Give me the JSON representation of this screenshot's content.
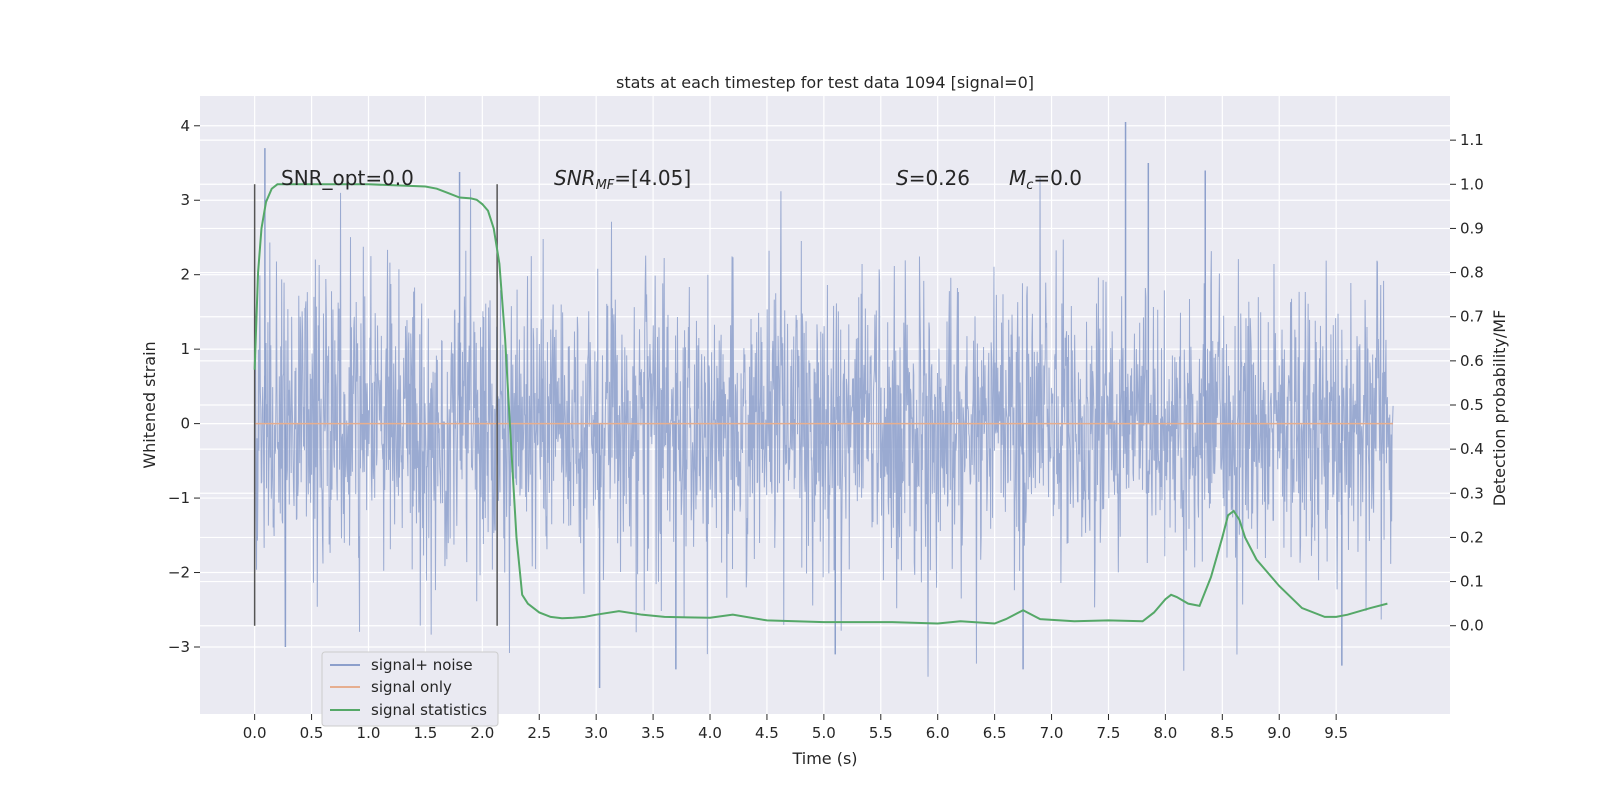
{
  "chart_data": {
    "type": "line",
    "title": "stats at each timestep for test data 1094 [signal=0]",
    "xlabel": "Time (s)",
    "ylabel_left": "Whitened strain",
    "ylabel_right": "Detection probability/MF",
    "xlim": [
      -0.48,
      10.5
    ],
    "ylim_left": [
      -3.9,
      4.4
    ],
    "ylim_right": [
      -0.2,
      1.2
    ],
    "x_ticks": [
      "0.0",
      "0.5",
      "1.0",
      "1.5",
      "2.0",
      "2.5",
      "3.0",
      "3.5",
      "4.0",
      "4.5",
      "5.0",
      "5.5",
      "6.0",
      "6.5",
      "7.0",
      "7.5",
      "8.0",
      "8.5",
      "9.0",
      "9.5"
    ],
    "y_ticks_left": [
      "−3",
      "−2",
      "−1",
      "0",
      "1",
      "2",
      "3",
      "4"
    ],
    "y_ticks_right": [
      "0.0",
      "0.1",
      "0.2",
      "0.3",
      "0.4",
      "0.5",
      "0.6",
      "0.7",
      "0.8",
      "0.9",
      "1.0",
      "1.1"
    ],
    "grid": true,
    "legend_position": "lower-left",
    "annotations": {
      "snr_opt": "SNR_opt=0.0",
      "snr_mf_main": "SNR",
      "snr_mf_sub": "MF",
      "snr_mf_value": "=[4.05]",
      "s_main": "S",
      "s_value": "=0.26",
      "mc_main": "M",
      "mc_sub": "c",
      "mc_value": "=0.0"
    },
    "vertical_markers_x": [
      0.0,
      2.13
    ],
    "series": [
      {
        "name": "signal+ noise",
        "axis": "left",
        "color": "#8c9fcb",
        "description_range": "noise envelope about ±1.4, peaks to about ±3.5",
        "x_range": [
          0.0,
          10.0
        ],
        "peaks": [
          {
            "x": 0.09,
            "y": 3.7
          },
          {
            "x": 1.8,
            "y": 3.38
          },
          {
            "x": 7.65,
            "y": 4.05
          },
          {
            "x": 7.85,
            "y": 3.5
          },
          {
            "x": 8.35,
            "y": 3.4
          },
          {
            "x": 3.03,
            "y": -3.55
          },
          {
            "x": 3.7,
            "y": -3.3
          },
          {
            "x": 9.55,
            "y": -3.25
          },
          {
            "x": 6.75,
            "y": -3.3
          },
          {
            "x": 0.27,
            "y": -3.0
          },
          {
            "x": 5.1,
            "y": -3.1
          }
        ]
      },
      {
        "name": "signal only",
        "axis": "left",
        "color": "#dd8452",
        "x": [
          0.0,
          10.0
        ],
        "y": [
          0.0,
          0.0
        ]
      },
      {
        "name": "signal statistics",
        "axis": "right",
        "color": "#55a868",
        "x": [
          0.0,
          0.03,
          0.06,
          0.1,
          0.15,
          0.2,
          0.3,
          0.5,
          1.0,
          1.5,
          1.6,
          1.7,
          1.8,
          1.9,
          1.95,
          2.0,
          2.05,
          2.1,
          2.15,
          2.2,
          2.25,
          2.3,
          2.35,
          2.4,
          2.45,
          2.5,
          2.55,
          2.6,
          2.7,
          2.8,
          2.9,
          3.0,
          3.2,
          3.4,
          3.6,
          3.8,
          4.0,
          4.2,
          4.5,
          5.0,
          5.3,
          5.6,
          6.0,
          6.2,
          6.5,
          6.6,
          6.75,
          6.9,
          7.2,
          7.5,
          7.8,
          7.9,
          8.0,
          8.05,
          8.1,
          8.2,
          8.3,
          8.4,
          8.5,
          8.55,
          8.6,
          8.65,
          8.7,
          8.8,
          8.9,
          9.0,
          9.2,
          9.4,
          9.5,
          9.6,
          9.8,
          9.95
        ],
        "y": [
          0.58,
          0.8,
          0.9,
          0.96,
          0.99,
          1.0,
          1.0,
          1.0,
          1.0,
          0.995,
          0.99,
          0.98,
          0.97,
          0.968,
          0.965,
          0.955,
          0.94,
          0.9,
          0.82,
          0.65,
          0.42,
          0.2,
          0.07,
          0.05,
          0.04,
          0.03,
          0.025,
          0.02,
          0.017,
          0.018,
          0.02,
          0.025,
          0.033,
          0.025,
          0.02,
          0.019,
          0.018,
          0.025,
          0.012,
          0.008,
          0.008,
          0.008,
          0.005,
          0.01,
          0.005,
          0.015,
          0.035,
          0.015,
          0.01,
          0.012,
          0.01,
          0.03,
          0.06,
          0.07,
          0.065,
          0.05,
          0.045,
          0.11,
          0.2,
          0.25,
          0.26,
          0.24,
          0.2,
          0.15,
          0.12,
          0.09,
          0.04,
          0.02,
          0.02,
          0.025,
          0.04,
          0.05
        ]
      }
    ]
  }
}
